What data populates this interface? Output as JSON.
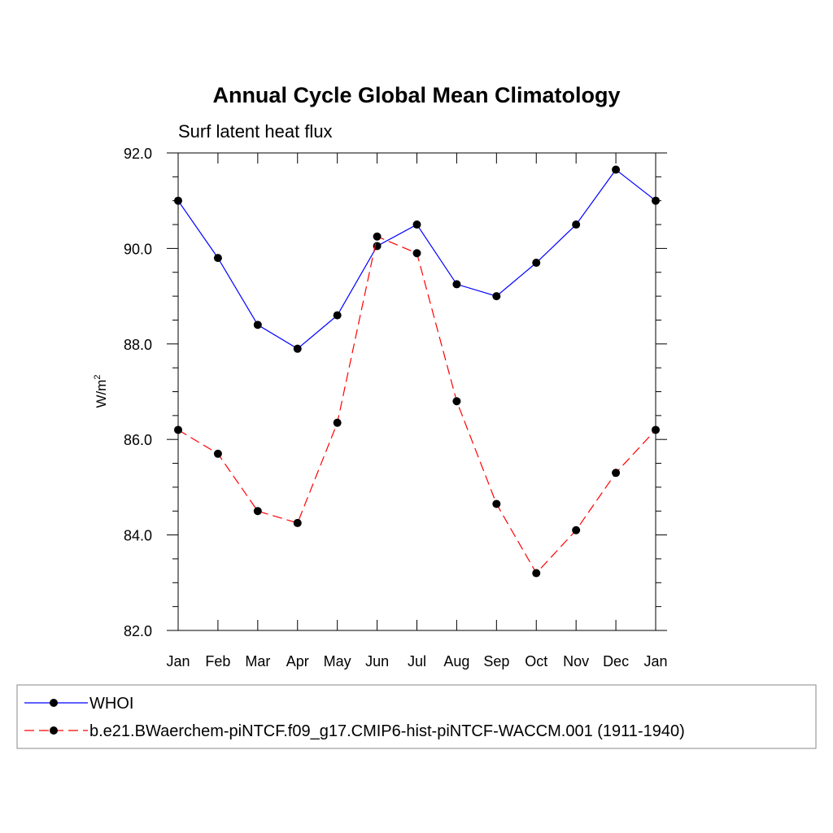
{
  "chart_data": {
    "type": "line",
    "title": "Annual Cycle Global Mean Climatology",
    "subtitle": "Surf latent heat flux",
    "ylabel_base": "W/m",
    "ylabel_sup": "2",
    "categories": [
      "Jan",
      "Feb",
      "Mar",
      "Apr",
      "May",
      "Jun",
      "Jul",
      "Aug",
      "Sep",
      "Oct",
      "Nov",
      "Dec",
      "Jan"
    ],
    "ylim": [
      82.0,
      92.0
    ],
    "yticks": [
      "82.0",
      "84.0",
      "86.0",
      "88.0",
      "90.0",
      "92.0"
    ],
    "series": [
      {
        "name": "WHOI",
        "color": "#0000ff",
        "dash": "solid",
        "values": [
          91.0,
          89.8,
          88.4,
          87.9,
          88.6,
          90.05,
          90.5,
          89.25,
          89.0,
          89.7,
          90.5,
          91.65,
          91.0
        ]
      },
      {
        "name": "b.e21.BWaerchem-piNTCF.f09_g17.CMIP6-hist-piNTCF-WACCM.001 (1911-1940)",
        "color": "#ff0000",
        "dash": "dashed",
        "values": [
          86.2,
          85.7,
          84.5,
          84.25,
          86.35,
          90.25,
          89.9,
          86.8,
          84.65,
          83.2,
          84.1,
          85.3,
          86.2
        ]
      }
    ],
    "legend_position": "bottom"
  }
}
